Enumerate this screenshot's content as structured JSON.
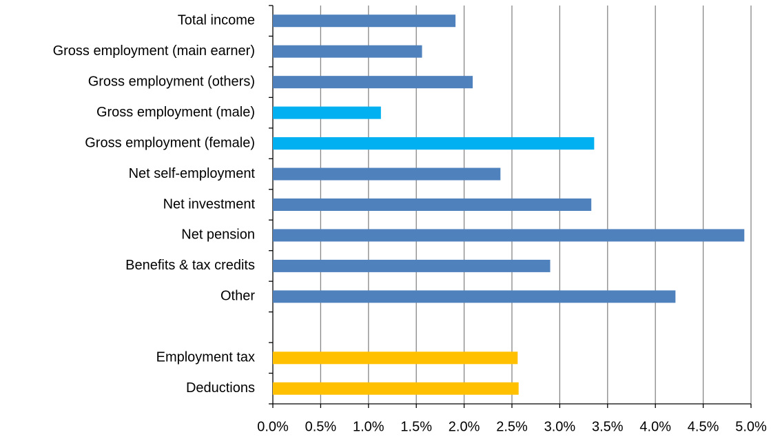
{
  "chart_data": {
    "type": "barh",
    "categories": [
      "Total income",
      "Gross employment (main earner)",
      "Gross employment (others)",
      "Gross employment (male)",
      "Gross employment (female)",
      "Net self-employment",
      "Net investment",
      "Net pension",
      "Benefits & tax credits",
      "Other",
      null,
      "Employment tax",
      "Deductions"
    ],
    "values": [
      1.91,
      1.56,
      2.09,
      1.13,
      3.36,
      2.38,
      3.33,
      4.93,
      2.9,
      4.21,
      null,
      2.56,
      2.57
    ],
    "colors": [
      "#4f81bd",
      "#4f81bd",
      "#4f81bd",
      "#00b0f0",
      "#00b0f0",
      "#4f81bd",
      "#4f81bd",
      "#4f81bd",
      "#4f81bd",
      "#4f81bd",
      null,
      "#ffc000",
      "#ffc000"
    ],
    "xlim": [
      0,
      5
    ],
    "xticks": [
      {
        "value": 0,
        "label": "0.0%"
      },
      {
        "value": 0.5,
        "label": "0.5%"
      },
      {
        "value": 1,
        "label": "1.0%"
      },
      {
        "value": 1.5,
        "label": "1.5%"
      },
      {
        "value": 2,
        "label": "2.0%"
      },
      {
        "value": 2.5,
        "label": "2.5%"
      },
      {
        "value": 3,
        "label": "3.0%"
      },
      {
        "value": 3.5,
        "label": "3.5%"
      },
      {
        "value": 4,
        "label": "4.0%"
      },
      {
        "value": 4.5,
        "label": "4.5%"
      },
      {
        "value": 5,
        "label": "5.0%"
      }
    ],
    "grid": true
  }
}
